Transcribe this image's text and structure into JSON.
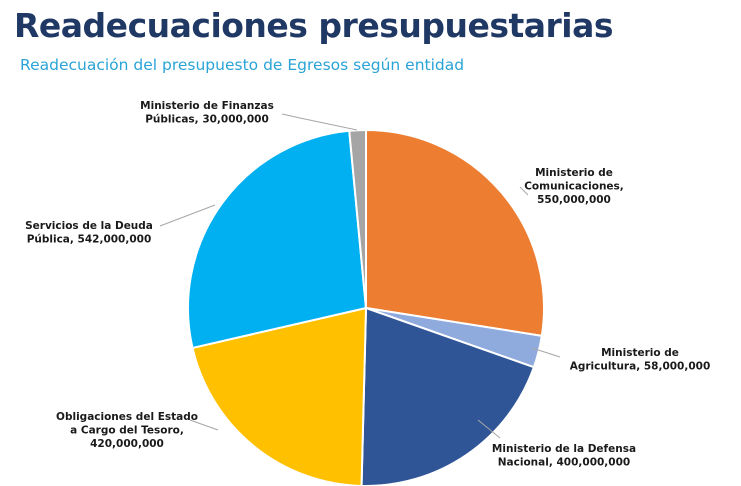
{
  "header": {
    "title": "Readecuaciones presupuestarias",
    "subtitle": "Readecuación del presupuesto de Egresos según entidad"
  },
  "chart_data": {
    "type": "pie",
    "title": "",
    "slices": [
      {
        "name": "Ministerio de Comunicaciones",
        "value": 550000000,
        "color": "#ed7d31",
        "label_lines": [
          "Ministerio de",
          "Comunicaciones,",
          "550,000,000"
        ]
      },
      {
        "name": "Ministerio de Agricultura",
        "value": 58000000,
        "color": "#8faadc",
        "label_lines": [
          "Ministerio de",
          "Agricultura, 58,000,000"
        ]
      },
      {
        "name": "Ministerio de la Defensa Nacional",
        "value": 400000000,
        "color": "#2f5597",
        "label_lines": [
          "Ministerio de la Defensa",
          "Nacional, 400,000,000"
        ]
      },
      {
        "name": "Obligaciones del Estado a Cargo del Tesoro",
        "value": 420000000,
        "color": "#ffc000",
        "label_lines": [
          "Obligaciones del Estado",
          "a Cargo del Tesoro,",
          "420,000,000"
        ]
      },
      {
        "name": "Servicios de la Deuda Pública",
        "value": 542000000,
        "color": "#00b0f0",
        "label_lines": [
          "Servicios de la Deuda",
          "Pública, 542,000,000"
        ]
      },
      {
        "name": "Ministerio de Finanzas Públicas",
        "value": 30000000,
        "color": "#a5a5a5",
        "label_lines": [
          "Ministerio de Finanzas",
          "Públicas, 30,000,000"
        ]
      }
    ]
  }
}
